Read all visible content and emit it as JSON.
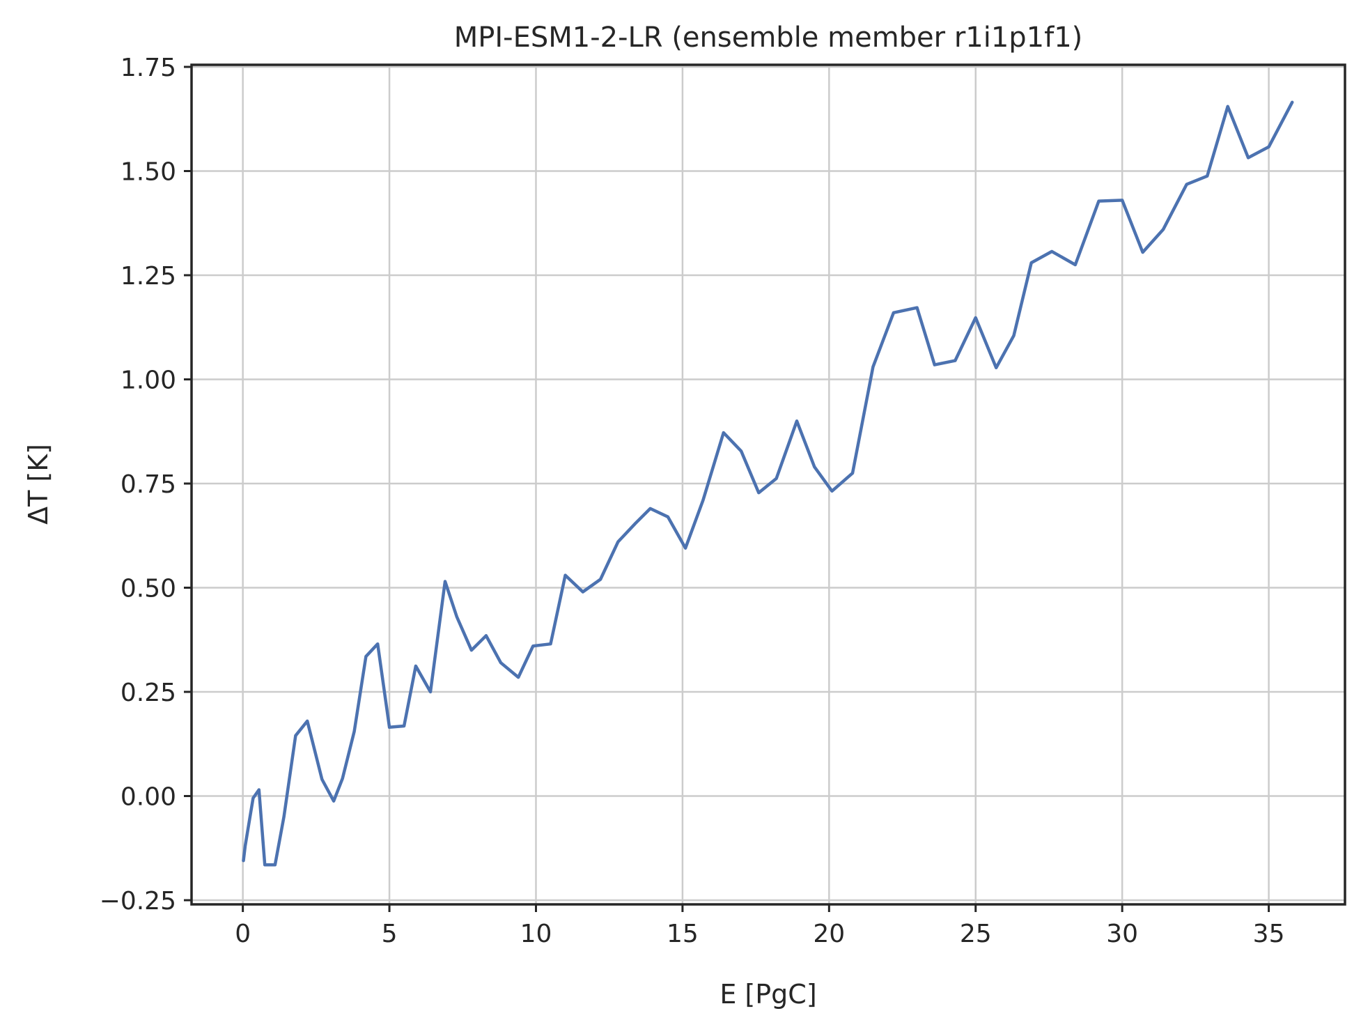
{
  "chart_data": {
    "type": "line",
    "title": "MPI-ESM1-2-LR (ensemble member r1i1p1f1)",
    "xlabel": "E [PgC]",
    "ylabel": "ΔT [K]",
    "xlim": [
      -1.75,
      37.6
    ],
    "ylim": [
      -0.26,
      1.755
    ],
    "x_ticks": [
      0,
      5,
      10,
      15,
      20,
      25,
      30,
      35
    ],
    "x_tick_labels": [
      "0",
      "5",
      "10",
      "15",
      "20",
      "25",
      "30",
      "35"
    ],
    "y_ticks": [
      -0.25,
      0,
      0.25,
      0.5,
      0.75,
      1.0,
      1.25,
      1.5,
      1.75
    ],
    "y_tick_labels": [
      "−0.25",
      "0.00",
      "0.25",
      "0.50",
      "0.75",
      "1.00",
      "1.25",
      "1.50",
      "1.75"
    ],
    "grid": true,
    "line_color": "#4c72b0",
    "series": [
      {
        "x": [
          0.02,
          0.08,
          0.35,
          0.55,
          0.75,
          1.1,
          1.4,
          1.8,
          2.2,
          2.7,
          3.1,
          3.4,
          3.8,
          4.2,
          4.6,
          5.0,
          5.5,
          5.9,
          6.4,
          6.9,
          7.3,
          7.8,
          8.3,
          8.8,
          9.4,
          9.9,
          10.5,
          11.0,
          11.6,
          12.2,
          12.8,
          13.4,
          13.9,
          14.5,
          15.1,
          15.7,
          16.4,
          17.0,
          17.6,
          18.2,
          18.9,
          19.5,
          20.1,
          20.8,
          21.5,
          22.2,
          23.0,
          23.6,
          24.3,
          25.0,
          25.7,
          26.3,
          26.9,
          27.6,
          28.4,
          29.2,
          30.0,
          30.7,
          31.4,
          32.2,
          32.9,
          33.6,
          34.3,
          35.0,
          35.8
        ],
        "y": [
          -0.155,
          -0.12,
          -0.005,
          0.015,
          -0.165,
          -0.165,
          -0.05,
          0.145,
          0.18,
          0.04,
          -0.012,
          0.042,
          0.155,
          0.335,
          0.365,
          0.165,
          0.168,
          0.312,
          0.25,
          0.515,
          0.43,
          0.35,
          0.385,
          0.32,
          0.285,
          0.36,
          0.365,
          0.53,
          0.49,
          0.52,
          0.61,
          0.655,
          0.69,
          0.67,
          0.595,
          0.71,
          0.872,
          0.828,
          0.728,
          0.762,
          0.9,
          0.79,
          0.732,
          0.775,
          1.03,
          1.16,
          1.172,
          1.035,
          1.045,
          1.148,
          1.028,
          1.105,
          1.28,
          1.307,
          1.275,
          1.428,
          1.43,
          1.305,
          1.36,
          1.468,
          1.488,
          1.655,
          1.532,
          1.558,
          1.665
        ]
      }
    ]
  }
}
